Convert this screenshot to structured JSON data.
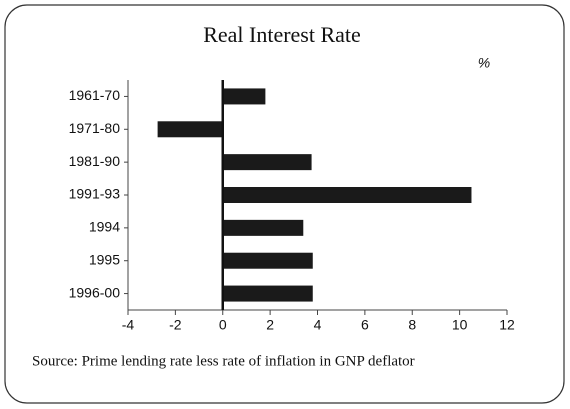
{
  "chart_data": {
    "type": "bar",
    "orientation": "horizontal",
    "title": "Real Interest Rate",
    "unit_label": "%",
    "note": "Source: Prime lending rate less rate of inflation in GNP deflator",
    "categories": [
      "1961-70",
      "1971-80",
      "1981-90",
      "1991-93",
      "1994",
      "1995",
      "1996-00"
    ],
    "values": [
      1.8,
      -2.75,
      3.75,
      10.5,
      3.4,
      3.8,
      3.8
    ],
    "color": "#1a1a1a",
    "xlim": [
      -4,
      12
    ],
    "xticks": [
      -4,
      -2,
      0,
      2,
      4,
      6,
      8,
      10,
      12
    ],
    "grid": false
  }
}
